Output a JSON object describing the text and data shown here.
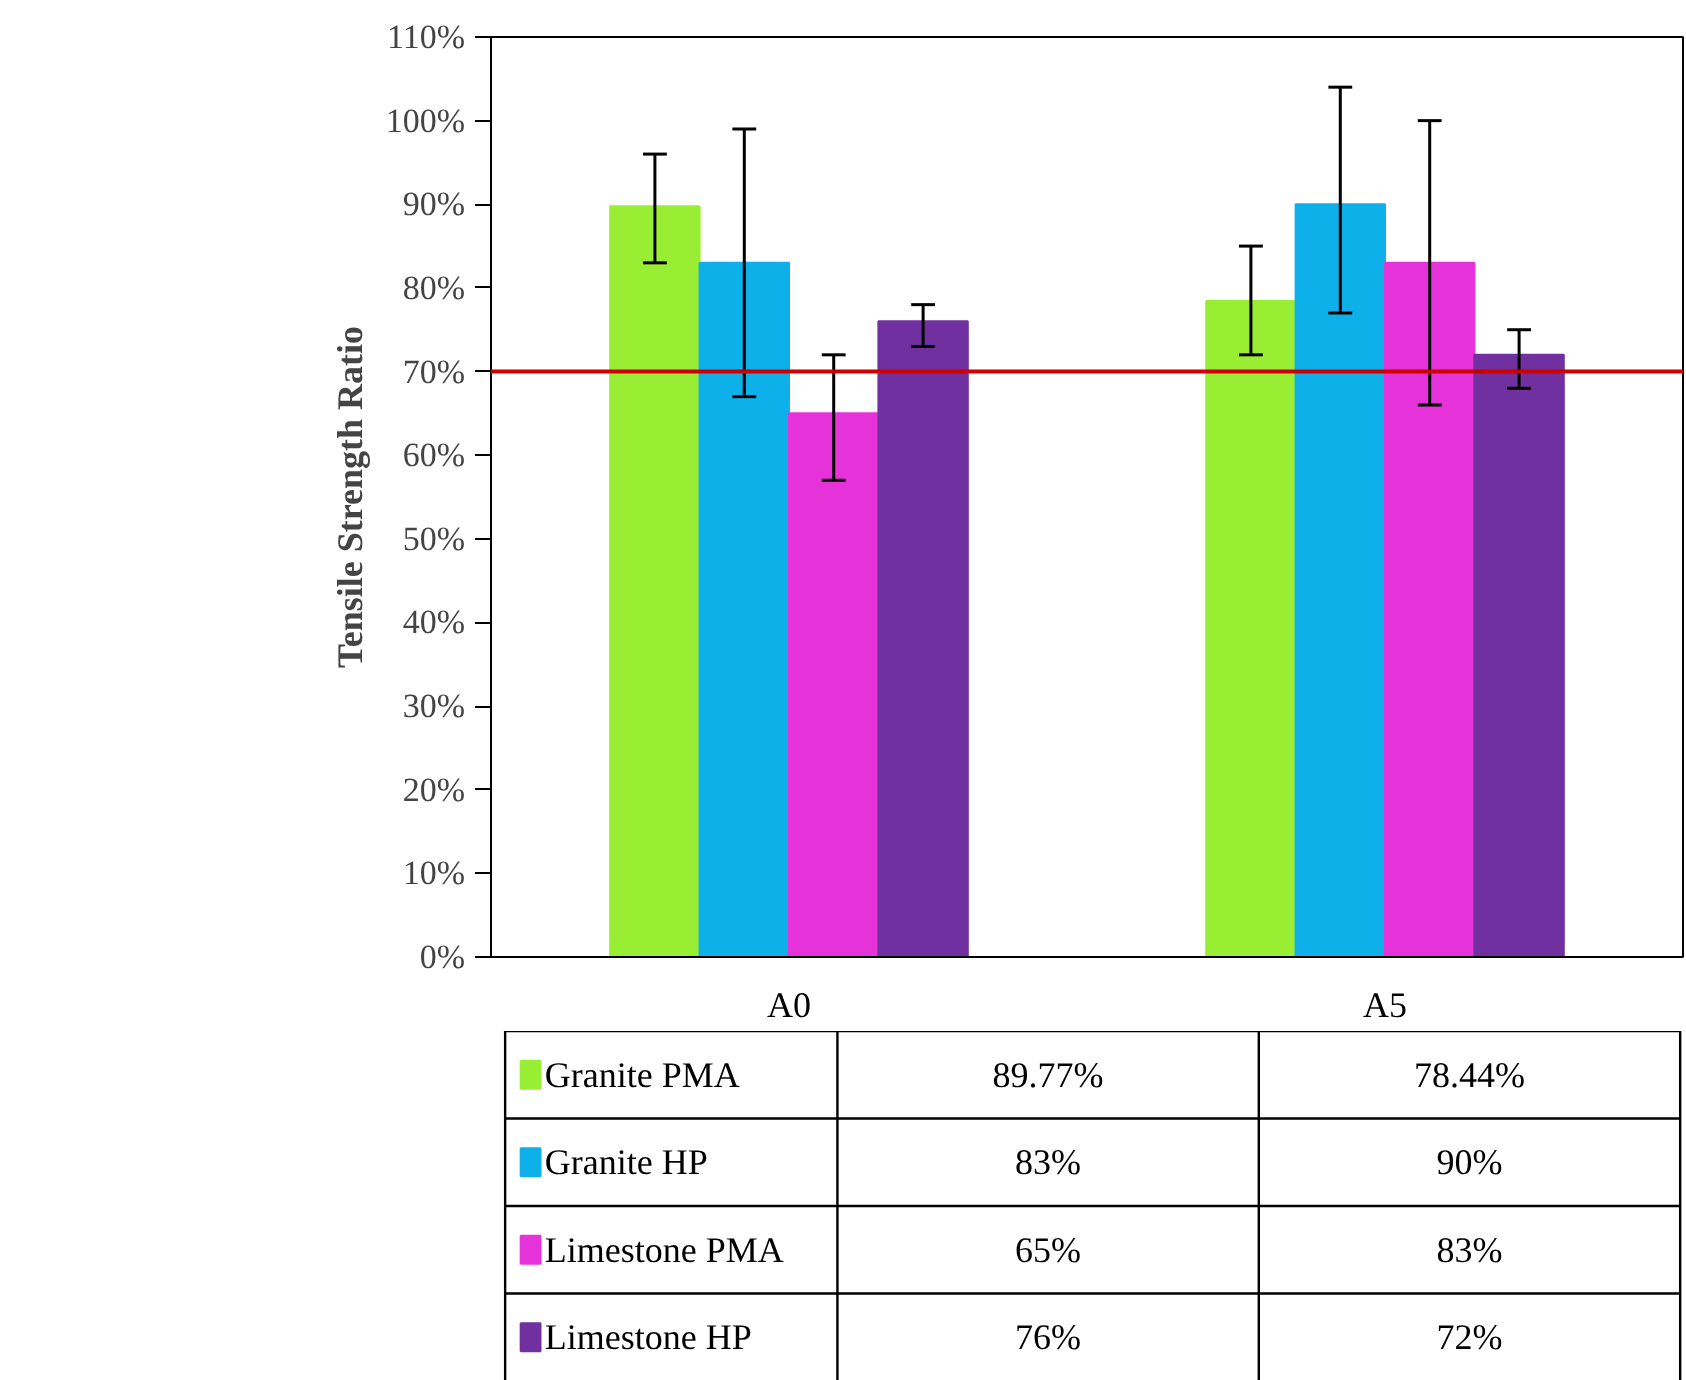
{
  "chart_data": {
    "type": "bar",
    "ylabel": "Tensile Strength Ratio",
    "categories": [
      "A0",
      "A5"
    ],
    "series": [
      {
        "name": "Granite PMA",
        "color": "#99ee33",
        "values": [
          89.77,
          78.44
        ],
        "value_labels": [
          "89.77%",
          "78.44%"
        ],
        "errors": [
          [
            83,
            96
          ],
          [
            72,
            85
          ]
        ]
      },
      {
        "name": "Granite HP",
        "color": "#0db0e8",
        "values": [
          83,
          90
        ],
        "value_labels": [
          "83%",
          "90%"
        ],
        "errors": [
          [
            67,
            99
          ],
          [
            77,
            104
          ]
        ]
      },
      {
        "name": "Limestone PMA",
        "color": "#e633d9",
        "values": [
          65,
          83
        ],
        "value_labels": [
          "65%",
          "83%"
        ],
        "errors": [
          [
            57,
            72
          ],
          [
            66,
            100
          ]
        ]
      },
      {
        "name": "Limestone HP",
        "color": "#7030a0",
        "values": [
          76,
          72
        ],
        "value_labels": [
          "76%",
          "72%"
        ],
        "errors": [
          [
            73,
            78
          ],
          [
            68,
            75
          ]
        ]
      }
    ],
    "ylim": [
      0,
      110
    ],
    "yticks": [
      {
        "value": 0,
        "label": "0%"
      },
      {
        "value": 10,
        "label": "10%"
      },
      {
        "value": 20,
        "label": "20%"
      },
      {
        "value": 30,
        "label": "30%"
      },
      {
        "value": 40,
        "label": "40%"
      },
      {
        "value": 50,
        "label": "50%"
      },
      {
        "value": 60,
        "label": "60%"
      },
      {
        "value": 70,
        "label": "70%"
      },
      {
        "value": 80,
        "label": "80%"
      },
      {
        "value": 90,
        "label": "90%"
      },
      {
        "value": 100,
        "label": "100%"
      },
      {
        "value": 110,
        "label": "110%"
      }
    ],
    "ref_lines": [
      {
        "axis": "y",
        "value": 70,
        "color": "#cc0000"
      }
    ],
    "grid": false,
    "legend": "bottom"
  }
}
